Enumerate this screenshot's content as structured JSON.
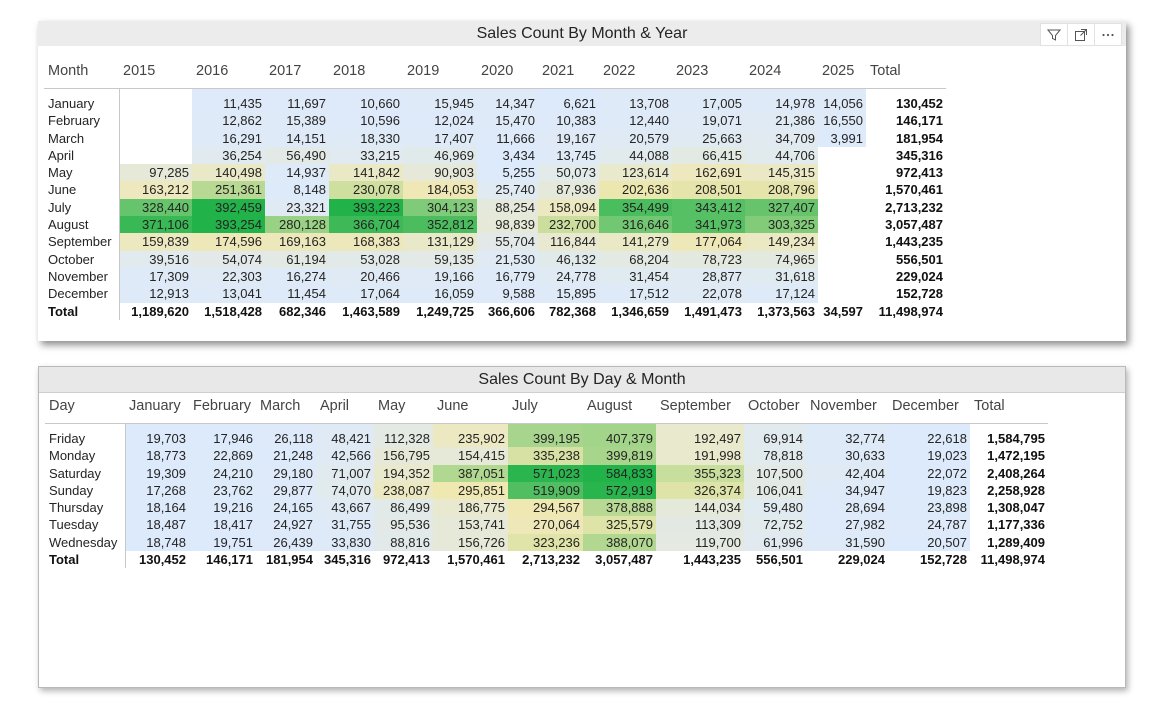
{
  "visual1": {
    "title": "Sales Count By Month & Year",
    "corner_label": "Month",
    "columns": [
      "2015",
      "2016",
      "2017",
      "2018",
      "2019",
      "2020",
      "2021",
      "2022",
      "2023",
      "2024",
      "2025",
      "Total"
    ],
    "rows": [
      {
        "label": "January",
        "values": [
          "",
          "11,435",
          "11,697",
          "10,660",
          "15,945",
          "14,347",
          "6,621",
          "13,708",
          "17,005",
          "14,978",
          "14,056",
          "130,452"
        ]
      },
      {
        "label": "February",
        "values": [
          "",
          "12,862",
          "15,389",
          "10,596",
          "12,024",
          "15,470",
          "10,383",
          "12,440",
          "19,071",
          "21,386",
          "16,550",
          "146,171"
        ]
      },
      {
        "label": "March",
        "values": [
          "",
          "16,291",
          "14,151",
          "18,330",
          "17,407",
          "11,666",
          "19,167",
          "20,579",
          "25,663",
          "34,709",
          "3,991",
          "181,954"
        ]
      },
      {
        "label": "April",
        "values": [
          "",
          "36,254",
          "56,490",
          "33,215",
          "46,969",
          "3,434",
          "13,745",
          "44,088",
          "66,415",
          "44,706",
          "",
          "345,316"
        ]
      },
      {
        "label": "May",
        "values": [
          "97,285",
          "140,498",
          "14,937",
          "141,842",
          "90,903",
          "5,255",
          "50,073",
          "123,614",
          "162,691",
          "145,315",
          "",
          "972,413"
        ]
      },
      {
        "label": "June",
        "values": [
          "163,212",
          "251,361",
          "8,148",
          "230,078",
          "184,053",
          "25,740",
          "87,936",
          "202,636",
          "208,501",
          "208,796",
          "",
          "1,570,461"
        ]
      },
      {
        "label": "July",
        "values": [
          "328,440",
          "392,459",
          "23,321",
          "393,223",
          "304,123",
          "88,254",
          "158,094",
          "354,499",
          "343,412",
          "327,407",
          "",
          "2,713,232"
        ]
      },
      {
        "label": "August",
        "values": [
          "371,106",
          "393,254",
          "280,128",
          "366,704",
          "352,812",
          "98,839",
          "232,700",
          "316,646",
          "341,973",
          "303,325",
          "",
          "3,057,487"
        ]
      },
      {
        "label": "September",
        "values": [
          "159,839",
          "174,596",
          "169,163",
          "168,383",
          "131,129",
          "55,704",
          "116,844",
          "141,279",
          "177,064",
          "149,234",
          "",
          "1,443,235"
        ]
      },
      {
        "label": "October",
        "values": [
          "39,516",
          "54,074",
          "61,194",
          "53,028",
          "59,135",
          "21,530",
          "46,132",
          "68,204",
          "78,723",
          "74,965",
          "",
          "556,501"
        ]
      },
      {
        "label": "November",
        "values": [
          "17,309",
          "22,303",
          "16,274",
          "20,466",
          "19,166",
          "16,779",
          "24,778",
          "31,454",
          "28,877",
          "31,618",
          "",
          "229,024"
        ]
      },
      {
        "label": "December",
        "values": [
          "12,913",
          "13,041",
          "11,454",
          "17,064",
          "16,059",
          "9,588",
          "15,895",
          "17,512",
          "22,078",
          "17,124",
          "",
          "152,728"
        ]
      }
    ],
    "total_row": {
      "label": "Total",
      "values": [
        "1,189,620",
        "1,518,428",
        "682,346",
        "1,463,589",
        "1,249,725",
        "366,606",
        "782,368",
        "1,346,659",
        "1,491,473",
        "1,373,563",
        "34,597",
        "11,498,974"
      ]
    }
  },
  "visual2": {
    "title": "Sales Count By Day & Month",
    "corner_label": "Day",
    "columns": [
      "January",
      "February",
      "March",
      "April",
      "May",
      "June",
      "July",
      "August",
      "September",
      "October",
      "November",
      "December",
      "Total"
    ],
    "rows": [
      {
        "label": "Friday",
        "values": [
          "19,703",
          "17,946",
          "26,118",
          "48,421",
          "112,328",
          "235,902",
          "399,195",
          "407,379",
          "192,497",
          "69,914",
          "32,774",
          "22,618",
          "1,584,795"
        ]
      },
      {
        "label": "Monday",
        "values": [
          "18,773",
          "22,869",
          "21,248",
          "42,566",
          "156,795",
          "154,415",
          "335,238",
          "399,819",
          "191,998",
          "78,818",
          "30,633",
          "19,023",
          "1,472,195"
        ]
      },
      {
        "label": "Saturday",
        "values": [
          "19,309",
          "24,210",
          "29,180",
          "71,007",
          "194,352",
          "387,051",
          "571,023",
          "584,833",
          "355,323",
          "107,500",
          "42,404",
          "22,072",
          "2,408,264"
        ]
      },
      {
        "label": "Sunday",
        "values": [
          "17,268",
          "23,762",
          "29,877",
          "74,070",
          "238,087",
          "295,851",
          "519,909",
          "572,919",
          "326,374",
          "106,041",
          "34,947",
          "19,823",
          "2,258,928"
        ]
      },
      {
        "label": "Thursday",
        "values": [
          "18,164",
          "19,216",
          "24,165",
          "43,667",
          "86,499",
          "186,775",
          "294,567",
          "378,888",
          "144,034",
          "59,480",
          "28,694",
          "23,898",
          "1,308,047"
        ]
      },
      {
        "label": "Tuesday",
        "values": [
          "18,487",
          "18,417",
          "24,927",
          "31,755",
          "95,536",
          "153,741",
          "270,064",
          "325,579",
          "113,309",
          "72,752",
          "27,982",
          "24,787",
          "1,177,336"
        ]
      },
      {
        "label": "Wednesday",
        "values": [
          "18,748",
          "19,751",
          "26,439",
          "33,830",
          "88,816",
          "156,726",
          "323,236",
          "388,070",
          "119,700",
          "61,996",
          "31,590",
          "20,507",
          "1,289,409"
        ]
      }
    ],
    "total_row": {
      "label": "Total",
      "values": [
        "130,452",
        "146,171",
        "181,954",
        "345,316",
        "972,413",
        "1,570,461",
        "2,713,232",
        "3,057,487",
        "1,443,235",
        "556,501",
        "229,024",
        "152,728",
        "11,498,974"
      ]
    }
  },
  "header_icons": [
    "filter-icon",
    "focus-mode-icon",
    "more-options-icon"
  ],
  "colors": {
    "low": "#ddeafc",
    "mid": "#f0e8b0",
    "high": "#21b24a"
  }
}
